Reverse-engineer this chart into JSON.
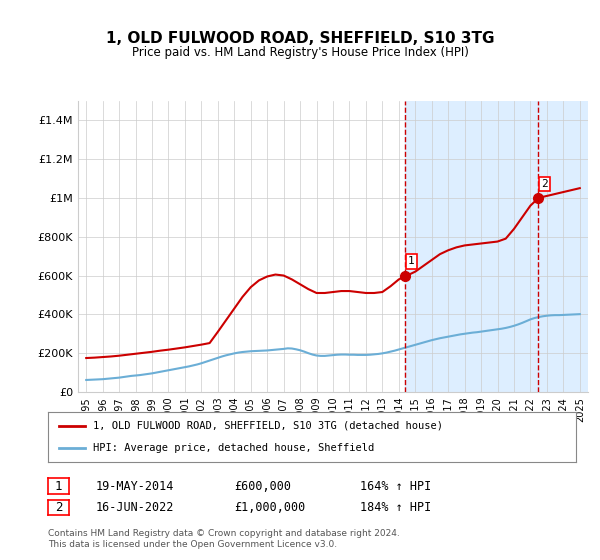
{
  "title": "1, OLD FULWOOD ROAD, SHEFFIELD, S10 3TG",
  "subtitle": "Price paid vs. HM Land Registry's House Price Index (HPI)",
  "footer": "Contains HM Land Registry data © Crown copyright and database right 2024.\nThis data is licensed under the Open Government Licence v3.0.",
  "legend_line1": "1, OLD FULWOOD ROAD, SHEFFIELD, S10 3TG (detached house)",
  "legend_line2": "HPI: Average price, detached house, Sheffield",
  "sale1_label": "1",
  "sale1_date": "19-MAY-2014",
  "sale1_price": "£600,000",
  "sale1_hpi": "164% ↑ HPI",
  "sale2_label": "2",
  "sale2_date": "16-JUN-2022",
  "sale2_price": "£1,000,000",
  "sale2_hpi": "184% ↑ HPI",
  "sale1_x": 2014.38,
  "sale1_y": 600000,
  "sale2_x": 2022.46,
  "sale2_y": 1000000,
  "vline1_x": 2014.38,
  "vline2_x": 2022.46,
  "ylim": [
    0,
    1500000
  ],
  "xlim": [
    1994.5,
    2025.5
  ],
  "yticks": [
    0,
    200000,
    400000,
    600000,
    800000,
    1000000,
    1200000,
    1400000
  ],
  "ytick_labels": [
    "£0",
    "£200K",
    "£400K",
    "£600K",
    "£800K",
    "£1M",
    "£1.2M",
    "£1.4M"
  ],
  "xticks": [
    1995,
    1996,
    1997,
    1998,
    1999,
    2000,
    2001,
    2002,
    2003,
    2004,
    2005,
    2006,
    2007,
    2008,
    2009,
    2010,
    2011,
    2012,
    2013,
    2014,
    2015,
    2016,
    2017,
    2018,
    2019,
    2020,
    2021,
    2022,
    2023,
    2024,
    2025
  ],
  "hpi_color": "#6baed6",
  "price_color": "#cc0000",
  "shade_color": "#ddeeff",
  "grid_color": "#cccccc",
  "background_color": "#ffffff",
  "hpi_data_x": [
    1995,
    1995.25,
    1995.5,
    1995.75,
    1996,
    1996.25,
    1996.5,
    1996.75,
    1997,
    1997.25,
    1997.5,
    1997.75,
    1998,
    1998.25,
    1998.5,
    1998.75,
    1999,
    1999.25,
    1999.5,
    1999.75,
    2000,
    2000.25,
    2000.5,
    2000.75,
    2001,
    2001.25,
    2001.5,
    2001.75,
    2002,
    2002.25,
    2002.5,
    2002.75,
    2003,
    2003.25,
    2003.5,
    2003.75,
    2004,
    2004.25,
    2004.5,
    2004.75,
    2005,
    2005.25,
    2005.5,
    2005.75,
    2006,
    2006.25,
    2006.5,
    2006.75,
    2007,
    2007.25,
    2007.5,
    2007.75,
    2008,
    2008.25,
    2008.5,
    2008.75,
    2009,
    2009.25,
    2009.5,
    2009.75,
    2010,
    2010.25,
    2010.5,
    2010.75,
    2011,
    2011.25,
    2011.5,
    2011.75,
    2012,
    2012.25,
    2012.5,
    2012.75,
    2013,
    2013.25,
    2013.5,
    2013.75,
    2014,
    2014.25,
    2014.5,
    2014.75,
    2015,
    2015.25,
    2015.5,
    2015.75,
    2016,
    2016.25,
    2016.5,
    2016.75,
    2017,
    2017.25,
    2017.5,
    2017.75,
    2018,
    2018.25,
    2018.5,
    2018.75,
    2019,
    2019.25,
    2019.5,
    2019.75,
    2020,
    2020.25,
    2020.5,
    2020.75,
    2021,
    2021.25,
    2021.5,
    2021.75,
    2022,
    2022.25,
    2022.5,
    2022.75,
    2023,
    2023.25,
    2023.5,
    2023.75,
    2024,
    2024.25,
    2024.5,
    2024.75,
    2025
  ],
  "hpi_data_y": [
    62000,
    63000,
    64000,
    65000,
    66000,
    68000,
    70000,
    72000,
    74000,
    77000,
    80000,
    83000,
    85000,
    87000,
    90000,
    93000,
    96000,
    100000,
    104000,
    108000,
    112000,
    116000,
    120000,
    124000,
    128000,
    132000,
    137000,
    142000,
    148000,
    155000,
    162000,
    169000,
    176000,
    183000,
    189000,
    194000,
    199000,
    203000,
    206000,
    208000,
    210000,
    211000,
    212000,
    213000,
    214000,
    216000,
    218000,
    220000,
    222000,
    225000,
    224000,
    220000,
    215000,
    208000,
    200000,
    193000,
    188000,
    186000,
    186000,
    188000,
    190000,
    192000,
    193000,
    193000,
    192000,
    192000,
    191000,
    191000,
    191000,
    192000,
    194000,
    196000,
    199000,
    203000,
    208000,
    213000,
    219000,
    225000,
    231000,
    237000,
    243000,
    249000,
    255000,
    261000,
    267000,
    272000,
    277000,
    281000,
    285000,
    289000,
    293000,
    297000,
    300000,
    303000,
    306000,
    308000,
    311000,
    314000,
    317000,
    320000,
    323000,
    326000,
    330000,
    335000,
    341000,
    348000,
    356000,
    365000,
    374000,
    381000,
    386000,
    390000,
    393000,
    395000,
    396000,
    396000,
    397000,
    398000,
    399000,
    400000,
    401000
  ],
  "price_data_x": [
    1995,
    1995.5,
    1996,
    1996.5,
    1997,
    1997.5,
    1998,
    1998.5,
    1999,
    1999.5,
    2000,
    2000.5,
    2001,
    2001.5,
    2002,
    2002.5,
    2003,
    2003.5,
    2004,
    2004.5,
    2005,
    2005.5,
    2006,
    2006.5,
    2007,
    2007.5,
    2008,
    2008.5,
    2009,
    2009.5,
    2010,
    2010.5,
    2011,
    2011.5,
    2012,
    2012.5,
    2013,
    2013.5,
    2014,
    2014.5,
    2015,
    2015.5,
    2016,
    2016.5,
    2017,
    2017.5,
    2018,
    2018.5,
    2019,
    2019.5,
    2020,
    2020.5,
    2021,
    2021.5,
    2022,
    2022.5,
    2023,
    2023.5,
    2024,
    2024.5,
    2025
  ],
  "price_data_y": [
    175000,
    177000,
    180000,
    183000,
    187000,
    192000,
    197000,
    202000,
    207000,
    213000,
    218000,
    224000,
    230000,
    237000,
    244000,
    252000,
    310000,
    370000,
    430000,
    490000,
    540000,
    575000,
    595000,
    605000,
    600000,
    580000,
    555000,
    530000,
    510000,
    510000,
    515000,
    520000,
    520000,
    515000,
    510000,
    510000,
    515000,
    545000,
    580000,
    600000,
    620000,
    650000,
    680000,
    710000,
    730000,
    745000,
    755000,
    760000,
    765000,
    770000,
    775000,
    790000,
    840000,
    900000,
    960000,
    1000000,
    1010000,
    1020000,
    1030000,
    1040000,
    1050000
  ]
}
